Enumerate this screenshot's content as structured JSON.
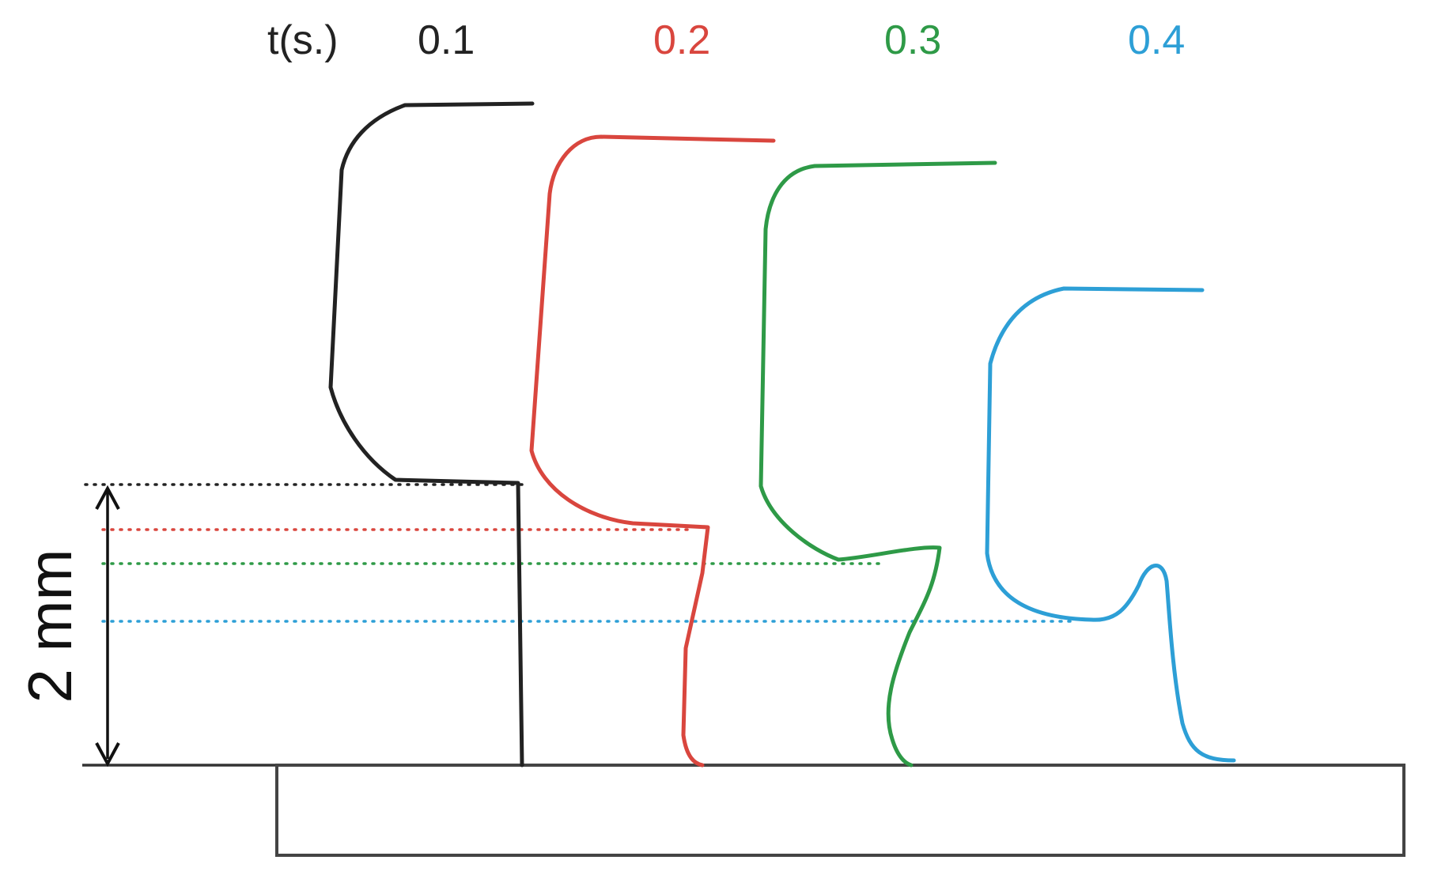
{
  "header": {
    "time_label": "t(s.)"
  },
  "profiles": [
    {
      "id": "t01",
      "label": "0.1",
      "color": "#222222"
    },
    {
      "id": "t02",
      "label": "0.2",
      "color": "#d9463e"
    },
    {
      "id": "t03",
      "label": "0.3",
      "color": "#2e9a47"
    },
    {
      "id": "t04",
      "label": "0.4",
      "color": "#2d9fd6"
    }
  ],
  "scale": {
    "label": "2 mm"
  }
}
